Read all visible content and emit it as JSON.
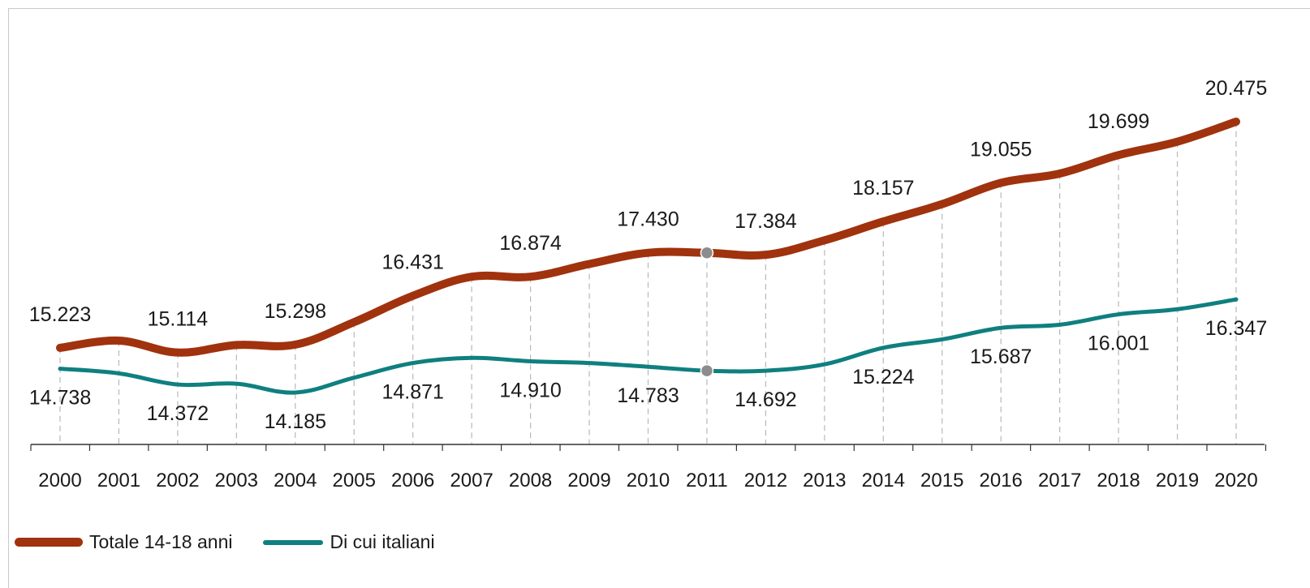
{
  "chart_data": {
    "type": "line",
    "title": "",
    "xlabel": "",
    "ylabel": "",
    "categories": [
      "2000",
      "2001",
      "2002",
      "2003",
      "2004",
      "2005",
      "2006",
      "2007",
      "2008",
      "2009",
      "2010",
      "2011",
      "2012",
      "2013",
      "2014",
      "2015",
      "2016",
      "2017",
      "2018",
      "2019",
      "2020"
    ],
    "series": [
      {
        "name": "Totale 14-18 anni",
        "color": "#a0320e",
        "values": [
          15223,
          15390,
          15114,
          15290,
          15298,
          15820,
          16431,
          16874,
          16874,
          17170,
          17430,
          17430,
          17384,
          17720,
          18157,
          18560,
          19055,
          19270,
          19699,
          20010,
          20475
        ],
        "labels": {
          "2000": "15.223",
          "2002": "15.114",
          "2004": "15.298",
          "2006": "16.431",
          "2008": "16.874",
          "2010": "17.430",
          "2012": "17.384",
          "2014": "18.157",
          "2016": "19.055",
          "2018": "19.699",
          "2020": "20.475"
        }
      },
      {
        "name": "Di cui italiani",
        "color": "#0f7f7f",
        "values": [
          14738,
          14630,
          14372,
          14390,
          14185,
          14530,
          14871,
          14990,
          14910,
          14870,
          14783,
          14692,
          14692,
          14840,
          15224,
          15420,
          15687,
          15760,
          16001,
          16120,
          16347
        ],
        "labels": {
          "2000": "14.738",
          "2002": "14.372",
          "2004": "14.185",
          "2006": "14.871",
          "2008": "14.910",
          "2010": "14.783",
          "2012": "14.692",
          "2014": "15.224",
          "2016": "15.687",
          "2018": "16.001",
          "2020": "16.347"
        }
      }
    ],
    "ylim": [
      13000,
      21500
    ],
    "markers": [
      "2011"
    ],
    "marker_color": "#8c8c8c",
    "gridlines": "vertical-dashed",
    "legend_position": "bottom-left"
  }
}
